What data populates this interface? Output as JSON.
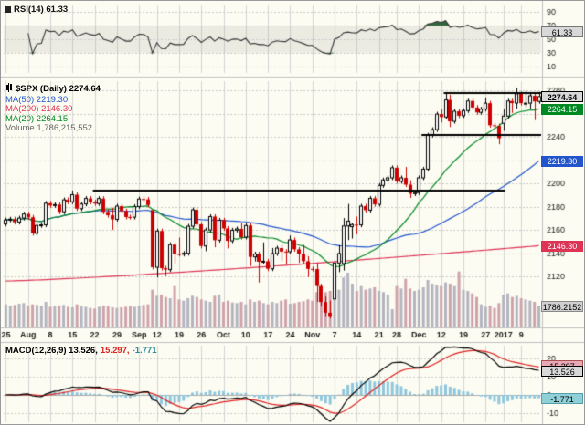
{
  "colors": {
    "background": "#fcfcf2",
    "grid": "#d4d4d4",
    "grid_dash": "#c8c8c8",
    "separator": "#c0c0c0",
    "up": "#000000",
    "up_fill": "#ffffff",
    "down": "#cc0000",
    "ma20": "#008822",
    "ma50": "#2255cc",
    "ma200": "#dd3355",
    "vol_up": "#b4b4c0",
    "vol_down": "#cea3ab",
    "rsi_line": "#333333",
    "rsi_fill": "#33663a",
    "rsi_band": "rgba(120,120,120,0.13)",
    "macd_line": "#000000",
    "signal_line": "#dd2222",
    "hist": "#8fc6dd",
    "trendline": "#000000",
    "axis_text": "#1a1a1a"
  },
  "panels": {
    "rsi": {
      "legend": "RSI(14) 61.33",
      "value_box": "61.33",
      "labels": [
        90,
        70,
        50,
        30,
        10
      ]
    },
    "main": {
      "legend": "$SPX (Daily) 2274.64",
      "ma50_label": "MA(50) 2219.30",
      "ma200_label": "MA(200) 2146.30",
      "ma20_label": "MA(20) 2264.15",
      "volume_label": "Volume 1,786,215,552",
      "boxes": {
        "close": "2274.64",
        "ma20": "2264.15",
        "ma50": "2219.30",
        "ma200": "2146.30",
        "volume": "1786.2152"
      },
      "y_labels": [
        2280,
        2240,
        2200,
        2180,
        2160,
        2140,
        2120
      ]
    },
    "macd": {
      "legend_main": "MACD(12,26,9) 13.526,",
      "legend_signal": "15.297,",
      "legend_hist": "-1.771",
      "boxes": {
        "macd": "13.526",
        "signal": "15.297",
        "hist": "-1.771"
      },
      "labels": [
        20,
        10,
        0,
        -10
      ]
    }
  },
  "chart_data": {
    "type": "candlestick",
    "symbol": "$SPX",
    "timeframe": "Daily",
    "last_close": 2274.64,
    "volume_total": "1,786,215,552",
    "price_axis": {
      "top_label": 2280,
      "bottom_label": 2120,
      "gridstep": 20
    },
    "indicators": [
      {
        "name": "RSI",
        "period": 14,
        "last": 61.33,
        "range": [
          0,
          100
        ],
        "overbought": 70,
        "oversold": 30
      },
      {
        "name": "MACD",
        "params": [
          12,
          26,
          9
        ],
        "last_macd": 13.526,
        "last_signal": 15.297,
        "last_hist": -1.771,
        "axis": [
          20,
          10,
          0,
          -10
        ]
      }
    ],
    "overlays": [
      {
        "name": "MA(20)",
        "period": 20,
        "color_key": "ma20",
        "last": 2264.15
      },
      {
        "name": "MA(50)",
        "period": 50,
        "color_key": "ma50",
        "last": 2219.3
      },
      {
        "name": "MA(200)",
        "period": 200,
        "color_key": "ma200",
        "last": 2146.3,
        "approx_start": 2116
      }
    ],
    "trendlines": [
      {
        "price": 2194,
        "from": 20,
        "to": 112
      },
      {
        "price": 2241.5,
        "from": 94,
        "to": 121
      },
      {
        "price": 2277.5,
        "from": 99,
        "to": 121
      }
    ],
    "x_ticks": [
      {
        "i": 0,
        "label": "25"
      },
      {
        "i": 5,
        "label": "Aug"
      },
      {
        "i": 10,
        "label": "8"
      },
      {
        "i": 15,
        "label": "15"
      },
      {
        "i": 20,
        "label": "22"
      },
      {
        "i": 25,
        "label": "29"
      },
      {
        "i": 30,
        "label": "Sep"
      },
      {
        "i": 34,
        "label": "12"
      },
      {
        "i": 39,
        "label": "19"
      },
      {
        "i": 44,
        "label": "26"
      },
      {
        "i": 49,
        "label": "Oct"
      },
      {
        "i": 54,
        "label": "10"
      },
      {
        "i": 59,
        "label": "17"
      },
      {
        "i": 64,
        "label": "24"
      },
      {
        "i": 69,
        "label": "Nov"
      },
      {
        "i": 74,
        "label": "7"
      },
      {
        "i": 79,
        "label": "14"
      },
      {
        "i": 84,
        "label": "21"
      },
      {
        "i": 88,
        "label": "28"
      },
      {
        "i": 93,
        "label": "Dec"
      },
      {
        "i": 98,
        "label": "12"
      },
      {
        "i": 103,
        "label": "19"
      },
      {
        "i": 108,
        "label": "27"
      },
      {
        "i": 112,
        "label": "2017"
      },
      {
        "i": 116,
        "label": "9"
      }
    ],
    "ohlc": [
      [
        2165.0,
        2170.5,
        2163.0,
        2168.5
      ],
      [
        2168.5,
        2171.2,
        2166.5,
        2169.2
      ],
      [
        2169.2,
        2171.2,
        2164.6,
        2166.6
      ],
      [
        2166.6,
        2172.1,
        2164.6,
        2170.1
      ],
      [
        2170.1,
        2175.6,
        2168.1,
        2173.6
      ],
      [
        2173.6,
        2175.6,
        2168.8,
        2170.8
      ],
      [
        2170.8,
        2172.8,
        2155.0,
        2157.0
      ],
      [
        2157.0,
        2165.8,
        2155.0,
        2163.8
      ],
      [
        2163.8,
        2166.3,
        2161.8,
        2164.3
      ],
      [
        2164.3,
        2184.9,
        2162.3,
        2182.9
      ],
      [
        2182.9,
        2184.9,
        2178.9,
        2180.9
      ],
      [
        2180.9,
        2183.7,
        2178.9,
        2181.7
      ],
      [
        2181.7,
        2183.7,
        2173.5,
        2175.5
      ],
      [
        2175.5,
        2187.8,
        2173.5,
        2185.8
      ],
      [
        2185.8,
        2187.8,
        2182.1,
        2184.1
      ],
      [
        2184.1,
        2193.8,
        2182.1,
        2190.2
      ],
      [
        2190.2,
        2192.2,
        2176.2,
        2178.2
      ],
      [
        2178.2,
        2184.2,
        2176.2,
        2182.2
      ],
      [
        2182.2,
        2189.0,
        2180.2,
        2187.0
      ],
      [
        2187.0,
        2189.0,
        2181.9,
        2183.9
      ],
      [
        2183.9,
        2185.9,
        2180.6,
        2182.6
      ],
      [
        2182.6,
        2188.9,
        2180.6,
        2186.9
      ],
      [
        2186.9,
        2188.9,
        2173.4,
        2175.4
      ],
      [
        2175.4,
        2177.4,
        2170.5,
        2172.5
      ],
      [
        2172.5,
        2179.0,
        2160.0,
        2169.0
      ],
      [
        2169.0,
        2182.4,
        2167.0,
        2180.4
      ],
      [
        2180.4,
        2182.4,
        2174.1,
        2176.1
      ],
      [
        2176.1,
        2178.1,
        2169.0,
        2171.0
      ],
      [
        2171.0,
        2173.0,
        2168.9,
        2170.9
      ],
      [
        2170.9,
        2182.0,
        2168.9,
        2180.0
      ],
      [
        2180.0,
        2188.5,
        2178.0,
        2186.5
      ],
      [
        2186.5,
        2188.5,
        2184.2,
        2186.2
      ],
      [
        2186.2,
        2188.2,
        2179.3,
        2181.3
      ],
      [
        2177.0,
        2177.0,
        2126.0,
        2127.8
      ],
      [
        2127.8,
        2161.0,
        2119.1,
        2159.0
      ],
      [
        2159.0,
        2161.0,
        2125.0,
        2127.0
      ],
      [
        2127.0,
        2129.0,
        2120.0,
        2125.8
      ],
      [
        2125.8,
        2149.3,
        2123.8,
        2147.3
      ],
      [
        2147.3,
        2149.3,
        2131.2,
        2139.2
      ],
      [
        2139.2,
        2153.3,
        2137.1,
        2139.1
      ],
      [
        2139.1,
        2141.8,
        2137.1,
        2139.8
      ],
      [
        2139.8,
        2165.1,
        2137.8,
        2163.1
      ],
      [
        2163.1,
        2179.2,
        2161.1,
        2177.2
      ],
      [
        2177.2,
        2179.2,
        2162.7,
        2164.7
      ],
      [
        2164.7,
        2166.7,
        2144.1,
        2146.1
      ],
      [
        2146.1,
        2161.9,
        2141.6,
        2159.9
      ],
      [
        2159.9,
        2173.4,
        2157.9,
        2171.4
      ],
      [
        2171.4,
        2173.4,
        2145.0,
        2151.1
      ],
      [
        2151.1,
        2170.3,
        2149.1,
        2168.3
      ],
      [
        2168.3,
        2170.3,
        2159.2,
        2161.2
      ],
      [
        2161.2,
        2163.2,
        2144.0,
        2150.5
      ],
      [
        2150.5,
        2161.7,
        2148.5,
        2159.7
      ],
      [
        2159.7,
        2162.8,
        2157.7,
        2160.8
      ],
      [
        2160.8,
        2165.9,
        2151.7,
        2153.7
      ],
      [
        2153.7,
        2165.7,
        2151.7,
        2163.7
      ],
      [
        2163.7,
        2165.7,
        2128.8,
        2136.7
      ],
      [
        2136.7,
        2141.2,
        2132.8,
        2139.2
      ],
      [
        2139.2,
        2141.2,
        2114.7,
        2132.6
      ],
      [
        2132.6,
        2149.2,
        2130.6,
        2133.0
      ],
      [
        2133.0,
        2135.0,
        2124.5,
        2126.5
      ],
      [
        2126.5,
        2144.4,
        2124.5,
        2139.6
      ],
      [
        2139.6,
        2146.3,
        2137.6,
        2144.3
      ],
      [
        2144.3,
        2147.2,
        2133.2,
        2141.3
      ],
      [
        2141.3,
        2143.3,
        2130.0,
        2141.2
      ],
      [
        2141.2,
        2155.1,
        2139.2,
        2151.3
      ],
      [
        2151.3,
        2153.3,
        2141.2,
        2143.2
      ],
      [
        2143.2,
        2145.2,
        2131.6,
        2139.4
      ],
      [
        2139.4,
        2147.1,
        2131.0,
        2133.0
      ],
      [
        2133.0,
        2137.4,
        2119.4,
        2126.4
      ],
      [
        2126.4,
        2128.4,
        2124.2,
        2126.2
      ],
      [
        2126.2,
        2131.5,
        2097.9,
        2111.7
      ],
      [
        2111.7,
        2113.7,
        2094.0,
        2097.9
      ],
      [
        2097.9,
        2102.6,
        2085.2,
        2088.7
      ],
      [
        2088.7,
        2099.1,
        2083.8,
        2085.2
      ],
      [
        2100.6,
        2133.5,
        2100.6,
        2131.5
      ],
      [
        2131.5,
        2146.9,
        2123.6,
        2139.6
      ],
      [
        2131.0,
        2170.1,
        2125.0,
        2163.3
      ],
      [
        2163.3,
        2182.3,
        2151.2,
        2167.5
      ],
      [
        2162.7,
        2165.9,
        2152.5,
        2164.5
      ],
      [
        2164.5,
        2171.4,
        2156.1,
        2164.2
      ],
      [
        2164.2,
        2182.4,
        2162.2,
        2180.4
      ],
      [
        2180.4,
        2182.4,
        2174.9,
        2176.9
      ],
      [
        2176.9,
        2189.1,
        2174.9,
        2187.1
      ],
      [
        2187.1,
        2189.1,
        2179.9,
        2181.9
      ],
      [
        2181.9,
        2200.2,
        2179.9,
        2198.2
      ],
      [
        2198.2,
        2204.9,
        2196.2,
        2202.9
      ],
      [
        2202.9,
        2206.7,
        2200.9,
        2204.7
      ],
      [
        2204.7,
        2215.4,
        2202.7,
        2213.4
      ],
      [
        2213.4,
        2215.4,
        2199.7,
        2201.7
      ],
      [
        2201.7,
        2206.7,
        2199.7,
        2204.7
      ],
      [
        2204.7,
        2214.1,
        2196.8,
        2198.8
      ],
      [
        2198.8,
        2202.6,
        2187.4,
        2191.1
      ],
      [
        2191.1,
        2194.0,
        2189.0,
        2192.0
      ],
      [
        2192.0,
        2206.7,
        2190.0,
        2204.7
      ],
      [
        2204.7,
        2214.2,
        2202.7,
        2212.2
      ],
      [
        2212.2,
        2243.4,
        2210.2,
        2241.4
      ],
      [
        2241.4,
        2248.2,
        2239.4,
        2246.2
      ],
      [
        2246.2,
        2261.5,
        2244.2,
        2259.5
      ],
      [
        2259.5,
        2264.0,
        2252.4,
        2257.0
      ],
      [
        2257.0,
        2278.0,
        2255.0,
        2271.7
      ],
      [
        2271.7,
        2276.2,
        2248.4,
        2253.3
      ],
      [
        2253.3,
        2264.0,
        2251.3,
        2262.0
      ],
      [
        2262.0,
        2264.0,
        2256.1,
        2258.1
      ],
      [
        2258.1,
        2264.5,
        2256.1,
        2262.5
      ],
      [
        2262.5,
        2272.8,
        2260.5,
        2270.8
      ],
      [
        2270.8,
        2272.8,
        2263.2,
        2265.2
      ],
      [
        2265.2,
        2267.2,
        2259.0,
        2261.0
      ],
      [
        2261.0,
        2265.8,
        2259.0,
        2263.8
      ],
      [
        2263.8,
        2273.8,
        2261.8,
        2268.9
      ],
      [
        2268.9,
        2270.9,
        2247.9,
        2249.9
      ],
      [
        2249.9,
        2251.9,
        2247.3,
        2249.3
      ],
      [
        2249.3,
        2251.3,
        2233.6,
        2238.8
      ],
      [
        2251.6,
        2263.9,
        2245.1,
        2257.8
      ],
      [
        2257.8,
        2272.8,
        2255.8,
        2270.8
      ],
      [
        2270.8,
        2272.8,
        2260.5,
        2269.0
      ],
      [
        2269.0,
        2282.1,
        2264.1,
        2277.0
      ],
      [
        2277.0,
        2279.0,
        2266.9,
        2268.9
      ],
      [
        2268.9,
        2279.3,
        2265.3,
        2268.9
      ],
      [
        2268.9,
        2277.3,
        2263.9,
        2275.3
      ],
      [
        2275.3,
        2277.3,
        2254.3,
        2270.4
      ],
      [
        2270.4,
        2278.7,
        2268.4,
        2274.6
      ]
    ],
    "volume_millions": [
      1900,
      1800,
      1850,
      1950,
      2000,
      1800,
      1900,
      1850,
      1800,
      2100,
      1700,
      1750,
      1800,
      1850,
      1700,
      1650,
      1900,
      1750,
      1700,
      1600,
      1550,
      1700,
      1800,
      1750,
      1650,
      1600,
      1650,
      1700,
      1750,
      1700,
      1800,
      1850,
      1900,
      3100,
      2600,
      2700,
      2500,
      2400,
      3400,
      2300,
      2200,
      2400,
      2600,
      2500,
      2300,
      2200,
      2100,
      2600,
      2700,
      2100,
      2200,
      2050,
      2000,
      2100,
      1900,
      2300,
      2100,
      2200,
      2000,
      1900,
      2100,
      2000,
      2200,
      2300,
      1950,
      2000,
      2100,
      2150,
      2300,
      2200,
      2900,
      2800,
      2900,
      3000,
      3200,
      3100,
      4100,
      4500,
      3600,
      3000,
      3400,
      3100,
      3200,
      3300,
      3000,
      2900,
      2700,
      1500,
      3400,
      3200,
      4000,
      3200,
      3000,
      3100,
      3300,
      3900,
      3600,
      3500,
      3400,
      3700,
      3600,
      3400,
      4600,
      3100,
      3000,
      2800,
      2500,
      1900,
      1700,
      1800,
      1600,
      2000,
      2700,
      2800,
      2500,
      2600,
      2400,
      2300,
      2200,
      2100,
      1786
    ]
  }
}
